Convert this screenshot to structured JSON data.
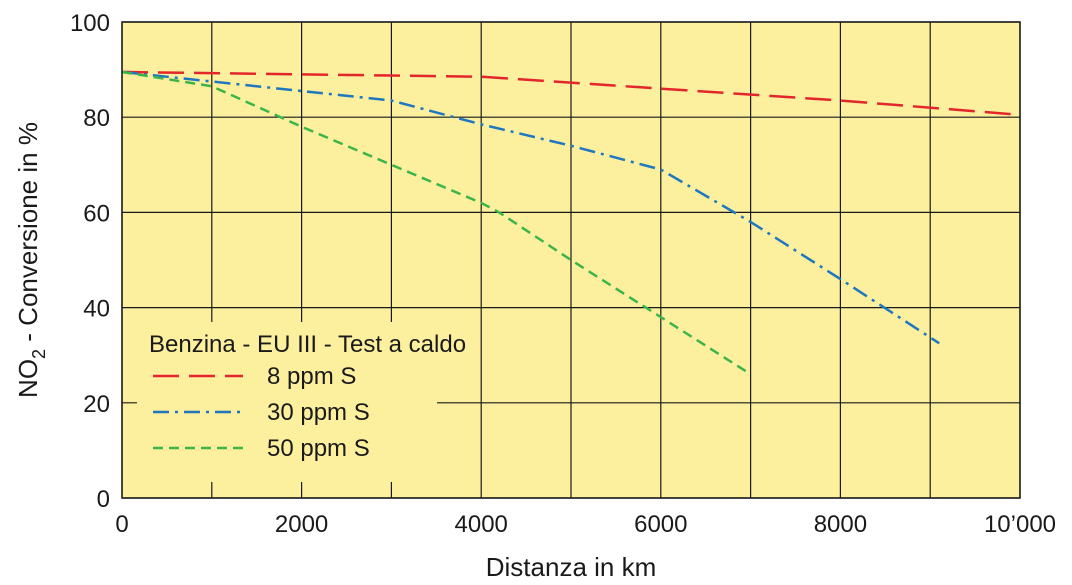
{
  "chart_data": {
    "type": "line",
    "title": "",
    "xlabel": "Distanza in km",
    "ylabel": {
      "prefix": "NO",
      "subscript": "2",
      "suffix": " - Conversione in %"
    },
    "xlim": [
      0,
      10000
    ],
    "ylim": [
      0,
      100
    ],
    "x_ticks": [
      0,
      2000,
      4000,
      6000,
      8000,
      10000
    ],
    "x_tick_labels": [
      "0",
      "2000",
      "4000",
      "6000",
      "8000",
      "10’000"
    ],
    "y_ticks": [
      0,
      20,
      40,
      60,
      80,
      100
    ],
    "y_tick_labels": [
      "0",
      "20",
      "40",
      "60",
      "80",
      "100"
    ],
    "x_grid": [
      0,
      1000,
      2000,
      3000,
      4000,
      5000,
      6000,
      7000,
      8000,
      9000,
      10000
    ],
    "grid": true,
    "plot_background": "#fcef9e",
    "legend": {
      "title": "Benzina - EU III - Test a caldo",
      "position": "bottom-left"
    },
    "series": [
      {
        "name": "8  ppm S",
        "color": "#e3262b",
        "dash": "long-dash",
        "points": [
          [
            0,
            89.5
          ],
          [
            2000,
            89
          ],
          [
            4000,
            88.5
          ],
          [
            6000,
            86
          ],
          [
            8000,
            83.5
          ],
          [
            10000,
            80.5
          ]
        ]
      },
      {
        "name": "30  ppm S",
        "color": "#1f77c0",
        "dash": "dash-dot",
        "points": [
          [
            0,
            89.5
          ],
          [
            1000,
            87.5
          ],
          [
            2000,
            85.5
          ],
          [
            3000,
            83.5
          ],
          [
            4000,
            78.5
          ],
          [
            5000,
            74
          ],
          [
            6000,
            69
          ],
          [
            7000,
            58
          ],
          [
            8000,
            46
          ],
          [
            9100,
            32.5
          ]
        ]
      },
      {
        "name": "50  ppm S",
        "color": "#3cb44a",
        "dash": "short-dash",
        "points": [
          [
            0,
            89.5
          ],
          [
            1000,
            86.5
          ],
          [
            2000,
            78
          ],
          [
            3000,
            70
          ],
          [
            4000,
            62
          ],
          [
            4200,
            60
          ],
          [
            5000,
            50
          ],
          [
            6000,
            38
          ],
          [
            7000,
            26
          ]
        ]
      }
    ]
  }
}
